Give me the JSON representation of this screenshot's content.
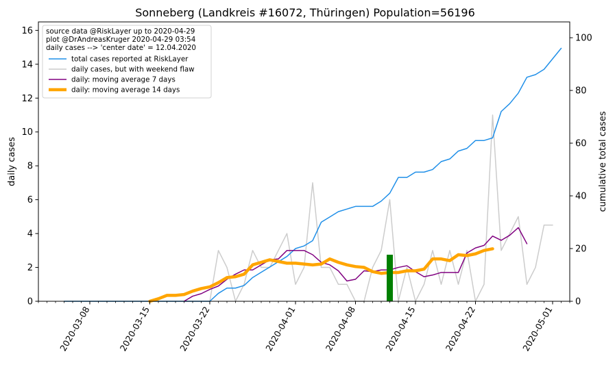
{
  "chart_data": {
    "type": "line",
    "title": "Sonneberg (Landkreis #16072, Thüringen) Population=56196",
    "xlabel": "",
    "ylabel": "daily cases",
    "y2label": "cumulative total cases",
    "xlim": [
      "2020-03-02",
      "2020-05-03"
    ],
    "ylim": [
      0,
      16.5
    ],
    "y2lim": [
      0,
      106
    ],
    "x_ticks": [
      "2020-03-08",
      "2020-03-15",
      "2020-03-22",
      "2020-04-01",
      "2020-04-08",
      "2020-04-15",
      "2020-04-22",
      "2020-05-01"
    ],
    "y_ticks": [
      0,
      2,
      4,
      6,
      8,
      10,
      12,
      14,
      16
    ],
    "y2_ticks": [
      0,
      20,
      40,
      60,
      80,
      100
    ],
    "legend_position": "top-left",
    "legend_text": [
      "source data @RiskLayer up to 2020-04-29",
      "plot @DrAndreasKruger 2020-04-29 03:54",
      "daily cases --> 'center date' = 12.04.2020"
    ],
    "center_marker": {
      "date": "2020-04-12",
      "height": 2.75,
      "color": "#008000"
    },
    "grid": false,
    "series": [
      {
        "name": "total cases reported at RiskLayer",
        "axis": "right",
        "color": "#1f8fe8",
        "width": 1.5,
        "start_date": "2020-03-05",
        "values": [
          0,
          0,
          0,
          0,
          0,
          0,
          0,
          0,
          0,
          0,
          0,
          0,
          0,
          0,
          0,
          0,
          0,
          0,
          3,
          5,
          5,
          6,
          9,
          11,
          13,
          15,
          17,
          20,
          21,
          23,
          30,
          32,
          34,
          35,
          36,
          36,
          36,
          38,
          41,
          47,
          47,
          49,
          49,
          50,
          53,
          54,
          57,
          58,
          61,
          61,
          62,
          72,
          75,
          79,
          85,
          86,
          88,
          92,
          96
        ]
      },
      {
        "name": "daily cases, but with weekend flaw",
        "axis": "left",
        "color": "#cccccc",
        "width": 1.5,
        "start_date": "2020-03-05",
        "values": [
          0,
          0,
          0,
          0,
          0,
          0,
          0,
          0,
          0,
          0,
          0,
          0,
          0,
          0,
          0,
          0,
          0,
          0,
          3,
          2,
          0,
          1,
          3,
          2,
          2,
          3,
          4,
          1,
          2,
          7,
          2,
          2,
          1,
          1,
          0,
          0,
          2,
          3,
          6,
          0,
          2,
          0,
          1,
          3,
          1,
          3,
          1,
          3,
          0,
          1,
          11,
          3,
          4,
          5,
          1,
          2,
          4.5,
          4.5
        ]
      },
      {
        "name": "daily: moving average 7 days",
        "axis": "left",
        "color": "#800080",
        "width": 1.5,
        "start_date": "2020-03-19",
        "values": [
          0,
          0.3,
          0.45,
          0.7,
          0.9,
          1.3,
          1.6,
          1.85,
          1.85,
          2.15,
          2.45,
          2.5,
          3,
          3,
          3,
          2.75,
          2.3,
          2.15,
          1.8,
          1.2,
          1.3,
          1.8,
          1.75,
          1.85,
          1.85,
          2,
          2.1,
          1.75,
          1.45,
          1.55,
          1.7,
          1.7,
          1.7,
          2.85,
          3.15,
          3.3,
          3.85,
          3.6,
          3.9,
          4.35,
          3.4
        ]
      },
      {
        "name": "daily: moving average 14 days",
        "axis": "left",
        "color": "#ffa500",
        "width": 4.5,
        "start_date": "2020-03-15",
        "values": [
          0,
          0.15,
          0.35,
          0.35,
          0.4,
          0.6,
          0.75,
          0.85,
          1.1,
          1.4,
          1.45,
          1.6,
          2.15,
          2.3,
          2.45,
          2.35,
          2.25,
          2.25,
          2.2,
          2.15,
          2.2,
          2.5,
          2.3,
          2.15,
          2.05,
          2,
          1.75,
          1.65,
          1.7,
          1.7,
          1.8,
          1.8,
          1.9,
          2.5,
          2.5,
          2.4,
          2.75,
          2.7,
          2.8,
          3,
          3.1
        ]
      }
    ]
  }
}
